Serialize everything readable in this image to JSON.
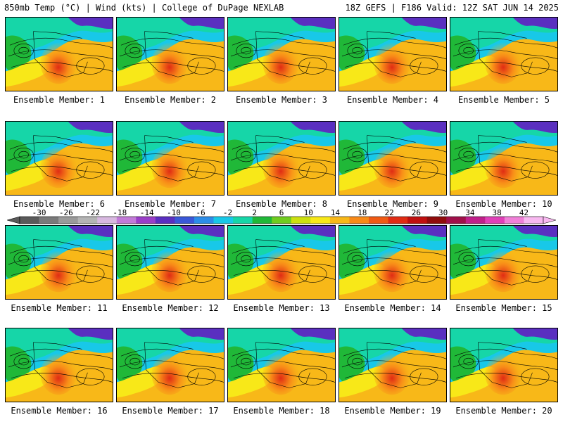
{
  "header": {
    "left": "850mb Temp (°C) | Wind (kts) | College of DuPage NEXLAB",
    "right": "18Z GEFS | F186 Valid: 12Z SAT JUN 14 2025"
  },
  "panels": [
    {
      "label": "Ensemble Member: 1"
    },
    {
      "label": "Ensemble Member: 2"
    },
    {
      "label": "Ensemble Member: 3"
    },
    {
      "label": "Ensemble Member: 4"
    },
    {
      "label": "Ensemble Member: 5"
    },
    {
      "label": "Ensemble Member: 6"
    },
    {
      "label": "Ensemble Member: 7"
    },
    {
      "label": "Ensemble Member: 8"
    },
    {
      "label": "Ensemble Member: 9"
    },
    {
      "label": "Ensemble Member: 10"
    },
    {
      "label": "Ensemble Member: 11"
    },
    {
      "label": "Ensemble Member: 12"
    },
    {
      "label": "Ensemble Member: 13"
    },
    {
      "label": "Ensemble Member: 14"
    },
    {
      "label": "Ensemble Member: 15"
    },
    {
      "label": "Ensemble Member: 16"
    },
    {
      "label": "Ensemble Member: 17"
    },
    {
      "label": "Ensemble Member: 18"
    },
    {
      "label": "Ensemble Member: 19"
    },
    {
      "label": "Ensemble Member: 20"
    }
  ],
  "colorbar": {
    "ticks": [
      "-30",
      "-26",
      "-22",
      "-18",
      "-14",
      "-10",
      "-6",
      "-2",
      "2",
      "6",
      "10",
      "14",
      "18",
      "22",
      "26",
      "30",
      "34",
      "38",
      "42"
    ],
    "colors": [
      "#5a5a5a",
      "#7a7a7a",
      "#9a9a9a",
      "#b4b4b4",
      "#d8b8e0",
      "#c27ad8",
      "#9a3ec8",
      "#5a2fc0",
      "#3a58d8",
      "#2c8de8",
      "#18c8e8",
      "#16d6a8",
      "#20b838",
      "#70cc20",
      "#cce010",
      "#f8e818",
      "#f8b818",
      "#f88a18",
      "#f05a14",
      "#e02c14",
      "#c01010",
      "#900c0c",
      "#a0104a",
      "#c0208a",
      "#e040b8",
      "#f080d8",
      "#f8b8f0"
    ]
  }
}
